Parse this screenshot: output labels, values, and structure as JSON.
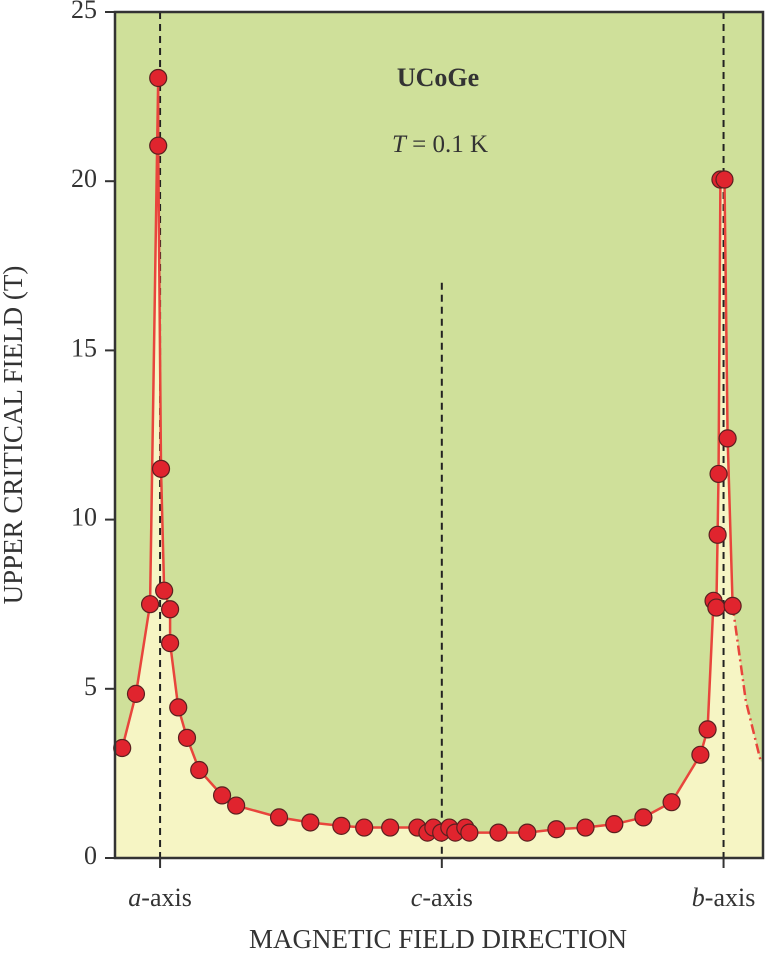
{
  "chart_data": {
    "type": "line",
    "title": "UCoGe",
    "annotation": "T = 0.1 K",
    "x_label": "MAGNETIC FIELD DIRECTION",
    "y_label": "UPPER CRITICAL FIELD (T)",
    "xlim": [
      -14.4,
      192.6
    ],
    "ylim": [
      0,
      25
    ],
    "xticks": [
      {
        "value": 0,
        "label": "a-axis"
      },
      {
        "value": 90,
        "label": "c-axis"
      },
      {
        "value": 180,
        "label": "b-axis"
      }
    ],
    "yticks": [
      0,
      5,
      10,
      15,
      20,
      25
    ],
    "background_color": "#cfe09a",
    "fill_color": "#f6f5c4",
    "reference_lines": [
      {
        "x": 0,
        "ymax": 25
      },
      {
        "x": 90,
        "ymax": 17
      },
      {
        "x": 180,
        "ymax": 25
      }
    ],
    "series": [
      {
        "color": "#e8453c",
        "marker_color": "#e0242e",
        "markers": true,
        "dashed": false,
        "x": [
          -12.1,
          -7.7,
          -3.2,
          -0.6,
          -0.6,
          0.3,
          1.3,
          3.2,
          3.2,
          5.8,
          8.6,
          12.5,
          19.8,
          24.3,
          38.0,
          48.0,
          57.9,
          65.2,
          73.5,
          82.2,
          85.4,
          87.3,
          89.8,
          92.4,
          94.3,
          97.5,
          98.8,
          108.1,
          117.3,
          126.6,
          135.9,
          145.1,
          154.4,
          163.4,
          172.6,
          174.9,
          176.8,
          177.7,
          178.1,
          178.4,
          179.0,
          180.3,
          181.3,
          182.9
        ],
        "values": [
          3.25,
          4.85,
          7.5,
          23.05,
          21.05,
          11.5,
          7.9,
          7.35,
          6.35,
          4.45,
          3.55,
          2.6,
          1.85,
          1.55,
          1.2,
          1.05,
          0.95,
          0.9,
          0.9,
          0.9,
          0.75,
          0.9,
          0.75,
          0.9,
          0.75,
          0.9,
          0.75,
          0.75,
          0.75,
          0.85,
          0.9,
          1.0,
          1.2,
          1.65,
          3.05,
          3.8,
          7.6,
          7.4,
          9.55,
          11.35,
          20.05,
          20.05,
          12.4,
          7.45
        ]
      },
      {
        "color": "#e8453c",
        "markers": false,
        "dashed": true,
        "x": [
          182.9,
          187.1,
          191.9
        ],
        "values": [
          7.45,
          4.65,
          2.85
        ]
      }
    ]
  }
}
